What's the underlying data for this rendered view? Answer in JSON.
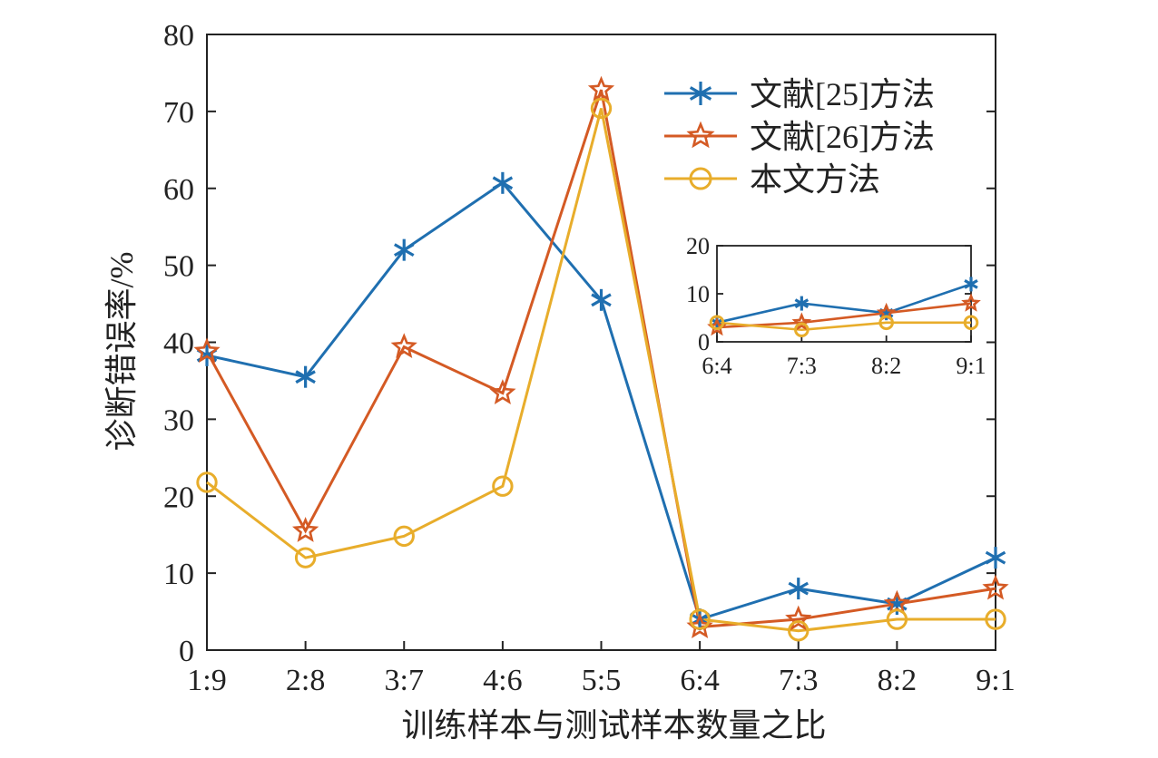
{
  "chart_data": [
    {
      "type": "line",
      "xlabel": "训练样本与测试样本数量之比",
      "ylabel": "诊断错误率/%",
      "categories": [
        "1:9",
        "2:8",
        "3:7",
        "4:6",
        "5:5",
        "6:4",
        "7:3",
        "8:2",
        "9:1"
      ],
      "ylim": [
        0,
        80
      ],
      "yticks": [
        0,
        10,
        20,
        30,
        40,
        50,
        60,
        70,
        80
      ],
      "legend_position": "top-right",
      "grid": false,
      "series": [
        {
          "name": "文献[25]方法",
          "color": "#1f6fb0",
          "marker": "asterisk",
          "values": [
            38.3,
            35.5,
            52.0,
            60.7,
            45.5,
            4.0,
            8.0,
            6.0,
            12.0
          ]
        },
        {
          "name": "文献[26]方法",
          "color": "#d45a24",
          "marker": "star",
          "values": [
            38.8,
            15.5,
            39.4,
            33.4,
            72.8,
            3.0,
            4.0,
            6.0,
            8.0
          ]
        },
        {
          "name": "本文方法",
          "color": "#e8ad2b",
          "marker": "circle",
          "values": [
            21.8,
            12.0,
            14.8,
            21.3,
            70.4,
            4.0,
            2.5,
            4.0,
            4.0
          ]
        }
      ]
    },
    {
      "type": "line",
      "categories": [
        "6:4",
        "7:3",
        "8:2",
        "9:1"
      ],
      "ylim": [
        0,
        20
      ],
      "yticks": [
        0,
        10,
        20
      ],
      "grid": false,
      "series": [
        {
          "name": "文献[25]方法",
          "color": "#1f6fb0",
          "marker": "asterisk",
          "values": [
            4.0,
            8.0,
            6.0,
            12.0
          ]
        },
        {
          "name": "文献[26]方法",
          "color": "#d45a24",
          "marker": "star",
          "values": [
            3.0,
            4.0,
            6.0,
            8.0
          ]
        },
        {
          "name": "本文方法",
          "color": "#e8ad2b",
          "marker": "circle",
          "values": [
            4.0,
            2.5,
            4.0,
            4.0
          ]
        }
      ]
    }
  ]
}
